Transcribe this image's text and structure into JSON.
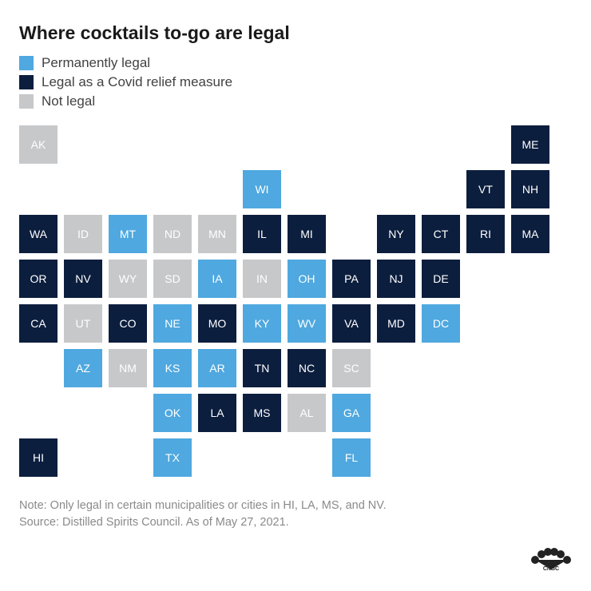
{
  "title": "Where cocktails to-go are legal",
  "colors": {
    "permanent": "#4fa8df",
    "covid": "#0c1e3e",
    "notlegal": "#c7c8ca",
    "text_light": "#ffffff",
    "text_gray": "#8a8a8a",
    "background": "#ffffff"
  },
  "legend": [
    {
      "label": "Permanently legal",
      "color": "#4fa8df"
    },
    {
      "label": "Legal as a Covid relief measure",
      "color": "#0c1e3e"
    },
    {
      "label": "Not legal",
      "color": "#c7c8ca"
    }
  ],
  "cell_style": {
    "text_color": "#ffffff",
    "font_size": 14,
    "cell_size": 48,
    "gap": 8
  },
  "grid": {
    "cols": 12,
    "rows": 8
  },
  "states": [
    {
      "id": "AK",
      "row": 1,
      "col": 1,
      "cat": "notlegal"
    },
    {
      "id": "ME",
      "row": 1,
      "col": 12,
      "cat": "covid"
    },
    {
      "id": "WI",
      "row": 2,
      "col": 6,
      "cat": "permanent"
    },
    {
      "id": "VT",
      "row": 2,
      "col": 11,
      "cat": "covid"
    },
    {
      "id": "NH",
      "row": 2,
      "col": 12,
      "cat": "covid"
    },
    {
      "id": "WA",
      "row": 3,
      "col": 1,
      "cat": "covid"
    },
    {
      "id": "ID",
      "row": 3,
      "col": 2,
      "cat": "notlegal"
    },
    {
      "id": "MT",
      "row": 3,
      "col": 3,
      "cat": "permanent"
    },
    {
      "id": "ND",
      "row": 3,
      "col": 4,
      "cat": "notlegal"
    },
    {
      "id": "MN",
      "row": 3,
      "col": 5,
      "cat": "notlegal"
    },
    {
      "id": "IL",
      "row": 3,
      "col": 6,
      "cat": "covid"
    },
    {
      "id": "MI",
      "row": 3,
      "col": 7,
      "cat": "covid"
    },
    {
      "id": "NY",
      "row": 3,
      "col": 9,
      "cat": "covid"
    },
    {
      "id": "CT",
      "row": 3,
      "col": 10,
      "cat": "covid"
    },
    {
      "id": "RI",
      "row": 3,
      "col": 11,
      "cat": "covid"
    },
    {
      "id": "MA",
      "row": 3,
      "col": 12,
      "cat": "covid"
    },
    {
      "id": "OR",
      "row": 4,
      "col": 1,
      "cat": "covid"
    },
    {
      "id": "NV",
      "row": 4,
      "col": 2,
      "cat": "covid"
    },
    {
      "id": "WY",
      "row": 4,
      "col": 3,
      "cat": "notlegal"
    },
    {
      "id": "SD",
      "row": 4,
      "col": 4,
      "cat": "notlegal"
    },
    {
      "id": "IA",
      "row": 4,
      "col": 5,
      "cat": "permanent"
    },
    {
      "id": "IN",
      "row": 4,
      "col": 6,
      "cat": "notlegal"
    },
    {
      "id": "OH",
      "row": 4,
      "col": 7,
      "cat": "permanent"
    },
    {
      "id": "PA",
      "row": 4,
      "col": 8,
      "cat": "covid"
    },
    {
      "id": "NJ",
      "row": 4,
      "col": 9,
      "cat": "covid"
    },
    {
      "id": "DE",
      "row": 4,
      "col": 10,
      "cat": "covid"
    },
    {
      "id": "CA",
      "row": 5,
      "col": 1,
      "cat": "covid"
    },
    {
      "id": "UT",
      "row": 5,
      "col": 2,
      "cat": "notlegal"
    },
    {
      "id": "CO",
      "row": 5,
      "col": 3,
      "cat": "covid"
    },
    {
      "id": "NE",
      "row": 5,
      "col": 4,
      "cat": "permanent"
    },
    {
      "id": "MO",
      "row": 5,
      "col": 5,
      "cat": "covid"
    },
    {
      "id": "KY",
      "row": 5,
      "col": 6,
      "cat": "permanent"
    },
    {
      "id": "WV",
      "row": 5,
      "col": 7,
      "cat": "permanent"
    },
    {
      "id": "VA",
      "row": 5,
      "col": 8,
      "cat": "covid"
    },
    {
      "id": "MD",
      "row": 5,
      "col": 9,
      "cat": "covid"
    },
    {
      "id": "DC",
      "row": 5,
      "col": 10,
      "cat": "permanent"
    },
    {
      "id": "AZ",
      "row": 6,
      "col": 2,
      "cat": "permanent"
    },
    {
      "id": "NM",
      "row": 6,
      "col": 3,
      "cat": "notlegal"
    },
    {
      "id": "KS",
      "row": 6,
      "col": 4,
      "cat": "permanent"
    },
    {
      "id": "AR",
      "row": 6,
      "col": 5,
      "cat": "permanent"
    },
    {
      "id": "TN",
      "row": 6,
      "col": 6,
      "cat": "covid"
    },
    {
      "id": "NC",
      "row": 6,
      "col": 7,
      "cat": "covid"
    },
    {
      "id": "SC",
      "row": 6,
      "col": 8,
      "cat": "notlegal"
    },
    {
      "id": "OK",
      "row": 7,
      "col": 4,
      "cat": "permanent"
    },
    {
      "id": "LA",
      "row": 7,
      "col": 5,
      "cat": "covid"
    },
    {
      "id": "MS",
      "row": 7,
      "col": 6,
      "cat": "covid"
    },
    {
      "id": "AL",
      "row": 7,
      "col": 7,
      "cat": "notlegal"
    },
    {
      "id": "GA",
      "row": 7,
      "col": 8,
      "cat": "permanent"
    },
    {
      "id": "HI",
      "row": 8,
      "col": 1,
      "cat": "covid"
    },
    {
      "id": "TX",
      "row": 8,
      "col": 4,
      "cat": "permanent"
    },
    {
      "id": "FL",
      "row": 8,
      "col": 8,
      "cat": "permanent"
    }
  ],
  "note_line1": "Note: Only legal in certain municipalities or cities in HI, LA, MS, and NV.",
  "note_line2": "Source: Distilled Spirits Council. As of May 27, 2021.",
  "brand": "CNBC"
}
